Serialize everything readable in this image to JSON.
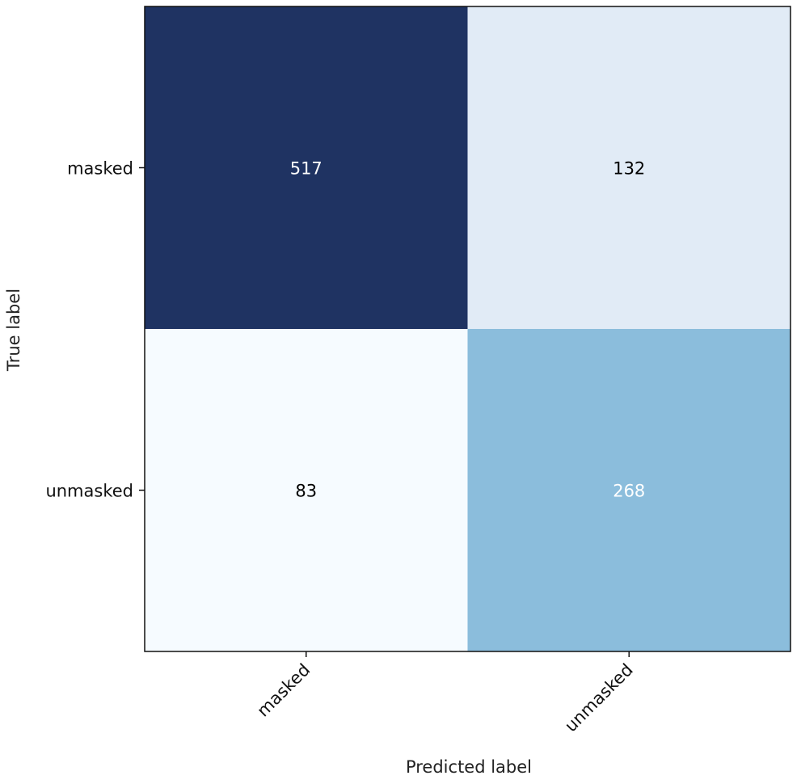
{
  "chart_data": {
    "type": "heatmap",
    "title": "",
    "xlabel": "Predicted label",
    "ylabel": "True label",
    "x_categories": [
      "masked",
      "unmasked"
    ],
    "y_categories": [
      "masked",
      "unmasked"
    ],
    "values": [
      [
        517,
        132
      ],
      [
        83,
        268
      ]
    ],
    "colormap": "Blues",
    "cell_colors": [
      [
        "#1f3362",
        "#e1ebf6"
      ],
      [
        "#f6fbff",
        "#8bbddc"
      ]
    ],
    "text_colors": [
      [
        "#ffffff",
        "#000000"
      ],
      [
        "#000000",
        "#ffffff"
      ]
    ],
    "grid": false,
    "legend": "none"
  }
}
